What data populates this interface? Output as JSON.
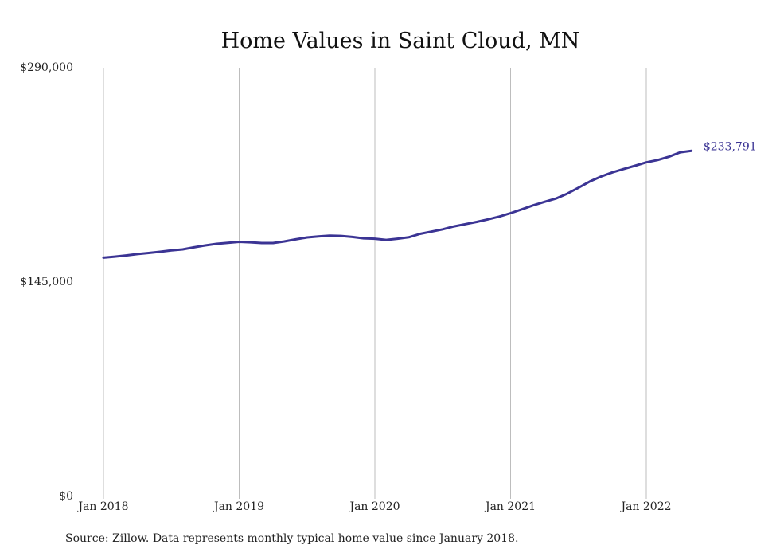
{
  "chart_data": {
    "type": "line",
    "title": "Home Values in Saint Cloud, MN",
    "xlabel": "",
    "ylabel": "",
    "ylim": [
      0,
      290000
    ],
    "y_ticks": [
      {
        "value": 290000,
        "label": "$290,000"
      },
      {
        "value": 145000,
        "label": "$145,000"
      },
      {
        "value": 0,
        "label": "$0"
      }
    ],
    "x_ticks": [
      {
        "value": "2018-01",
        "label": "Jan 2018"
      },
      {
        "value": "2019-01",
        "label": "Jan 2019"
      },
      {
        "value": "2020-01",
        "label": "Jan 2020"
      },
      {
        "value": "2021-01",
        "label": "Jan 2021"
      },
      {
        "value": "2022-01",
        "label": "Jan 2022"
      }
    ],
    "grid": "vertical",
    "line_color": "#3b3494",
    "end_label": "$233,791",
    "series": [
      {
        "x": [
          "2018-01",
          "2018-02",
          "2018-03",
          "2018-04",
          "2018-05",
          "2018-06",
          "2018-07",
          "2018-08",
          "2018-09",
          "2018-10",
          "2018-11",
          "2018-12",
          "2019-01",
          "2019-02",
          "2019-03",
          "2019-04",
          "2019-05",
          "2019-06",
          "2019-07",
          "2019-08",
          "2019-09",
          "2019-10",
          "2019-11",
          "2019-12",
          "2020-01",
          "2020-02",
          "2020-03",
          "2020-04",
          "2020-05",
          "2020-06",
          "2020-07",
          "2020-08",
          "2020-09",
          "2020-10",
          "2020-11",
          "2020-12",
          "2021-01",
          "2021-02",
          "2021-03",
          "2021-04",
          "2021-05",
          "2021-06",
          "2021-07",
          "2021-08",
          "2021-09",
          "2021-10",
          "2021-11",
          "2021-12",
          "2022-01",
          "2022-02",
          "2022-03",
          "2022-04",
          "2022-05"
        ],
        "values": [
          161500,
          162200,
          163000,
          163900,
          164700,
          165500,
          166400,
          167100,
          168500,
          169800,
          170900,
          171600,
          172200,
          171900,
          171400,
          171400,
          172500,
          173900,
          175200,
          175900,
          176400,
          176200,
          175500,
          174600,
          174300,
          173500,
          174300,
          175300,
          177600,
          179100,
          180700,
          182700,
          184200,
          185700,
          187400,
          189300,
          191600,
          194200,
          196900,
          199300,
          201500,
          204800,
          208800,
          213000,
          216400,
          219200,
          221500,
          223700,
          226000,
          227600,
          229800,
          232800,
          233791
        ]
      }
    ]
  },
  "footer": {
    "source": "Source: Zillow. Data represents monthly typical home value since January 2018."
  }
}
